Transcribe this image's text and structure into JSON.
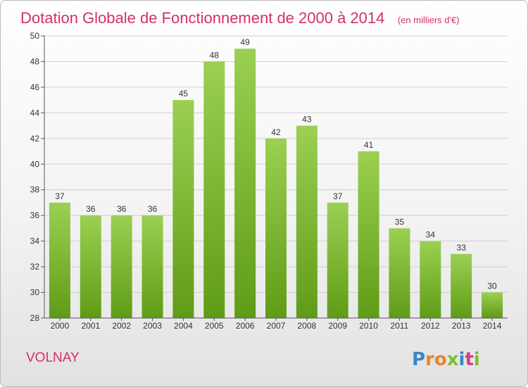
{
  "chart_data": {
    "type": "bar",
    "title": "Dotation Globale de Fonctionnement de 2000 à 2014",
    "subtitle": "(en milliers d'€)",
    "categories": [
      "2000",
      "2001",
      "2002",
      "2003",
      "2004",
      "2005",
      "2006",
      "2007",
      "2008",
      "2009",
      "2010",
      "2011",
      "2012",
      "2013",
      "2014"
    ],
    "values": [
      37,
      36,
      36,
      36,
      45,
      48,
      49,
      42,
      43,
      37,
      41,
      35,
      34,
      33,
      30
    ],
    "ylim": [
      28,
      50
    ],
    "yticks": [
      28,
      30,
      32,
      34,
      36,
      38,
      40,
      42,
      44,
      46,
      48,
      50
    ],
    "grid": true,
    "bar_color_top": "#9bd052",
    "bar_color_bottom": "#5f9c16"
  },
  "commune": "VOLNAY",
  "logo": {
    "text": "Proxiti",
    "letter_colors": [
      "#3a86c8",
      "#e9852a",
      "#e9852a",
      "#7bbf2a",
      "#3a86c8",
      "#d33b8a",
      "#7bbf2a"
    ]
  }
}
